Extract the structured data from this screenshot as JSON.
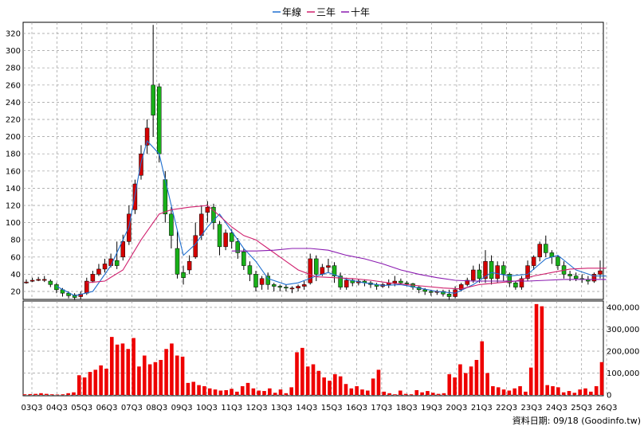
{
  "legend": [
    {
      "label": "年線",
      "color": "#1f6fd0"
    },
    {
      "label": "三年",
      "color": "#d0206e"
    },
    {
      "label": "十年",
      "color": "#8a1ab0"
    }
  ],
  "source_label": "資料日期: 09/18  (Goodinfo.tw)",
  "colors": {
    "up": "#d40000",
    "down": "#18b018",
    "volume": "#ee0000",
    "grid": "#999999"
  },
  "chart_data": [
    {
      "type": "candlestick",
      "title": "",
      "ylim": [
        10,
        330
      ],
      "yticks": [
        20,
        40,
        60,
        80,
        100,
        120,
        140,
        160,
        180,
        200,
        220,
        240,
        260,
        280,
        300,
        320
      ],
      "grid": true,
      "xtick_labels": [
        "03Q3",
        "04Q3",
        "05Q3",
        "06Q3",
        "07Q3",
        "08Q3",
        "09Q3",
        "10Q3",
        "11Q3",
        "12Q3",
        "13Q3",
        "14Q3",
        "15Q3",
        "16Q3",
        "17Q3",
        "18Q3",
        "19Q3",
        "20Q3",
        "21Q3",
        "22Q3",
        "23Q3",
        "24Q3",
        "25Q3",
        "26Q3"
      ],
      "candles": [
        [
          31,
          31,
          29,
          34
        ],
        [
          32,
          33,
          31,
          36
        ],
        [
          33,
          34,
          32,
          37
        ],
        [
          34,
          34,
          31,
          38
        ],
        [
          32,
          28,
          25,
          34
        ],
        [
          28,
          22,
          18,
          30
        ],
        [
          22,
          18,
          14,
          24
        ],
        [
          18,
          15,
          12,
          20
        ],
        [
          16,
          13,
          10,
          18
        ],
        [
          14,
          17,
          11,
          20
        ],
        [
          18,
          32,
          16,
          36
        ],
        [
          32,
          40,
          30,
          44
        ],
        [
          40,
          46,
          38,
          52
        ],
        [
          46,
          52,
          42,
          58
        ],
        [
          50,
          58,
          48,
          64
        ],
        [
          56,
          50,
          46,
          78
        ],
        [
          60,
          78,
          56,
          86
        ],
        [
          78,
          110,
          74,
          120
        ],
        [
          115,
          145,
          110,
          150
        ],
        [
          155,
          180,
          150,
          190
        ],
        [
          190,
          210,
          180,
          220
        ],
        [
          260,
          225,
          200,
          330
        ],
        [
          258,
          180,
          170,
          262
        ],
        [
          150,
          110,
          100,
          160
        ],
        [
          110,
          85,
          70,
          118
        ],
        [
          70,
          40,
          35,
          90
        ],
        [
          42,
          36,
          28,
          50
        ],
        [
          45,
          55,
          40,
          62
        ],
        [
          60,
          85,
          58,
          100
        ],
        [
          85,
          110,
          80,
          120
        ],
        [
          112,
          118,
          100,
          125
        ],
        [
          118,
          100,
          92,
          122
        ],
        [
          98,
          72,
          62,
          102
        ],
        [
          72,
          88,
          68,
          92
        ],
        [
          88,
          78,
          70,
          92
        ],
        [
          78,
          65,
          58,
          82
        ],
        [
          66,
          50,
          45,
          70
        ],
        [
          50,
          40,
          32,
          55
        ],
        [
          40,
          25,
          20,
          44
        ],
        [
          28,
          35,
          22,
          38
        ],
        [
          38,
          28,
          22,
          42
        ],
        [
          28,
          26,
          20,
          30
        ],
        [
          26,
          25,
          20,
          28
        ],
        [
          25,
          24,
          20,
          28
        ],
        [
          24,
          24,
          18,
          26
        ],
        [
          24,
          26,
          20,
          28
        ],
        [
          26,
          28,
          22,
          32
        ],
        [
          30,
          58,
          28,
          64
        ],
        [
          58,
          40,
          32,
          62
        ],
        [
          40,
          48,
          38,
          52
        ],
        [
          48,
          50,
          42,
          58
        ],
        [
          50,
          38,
          30,
          54
        ],
        [
          38,
          25,
          22,
          42
        ],
        [
          25,
          33,
          22,
          36
        ],
        [
          33,
          30,
          26,
          35
        ],
        [
          30,
          32,
          27,
          34
        ],
        [
          32,
          30,
          26,
          34
        ],
        [
          30,
          28,
          24,
          32
        ],
        [
          28,
          26,
          22,
          30
        ],
        [
          26,
          28,
          24,
          30
        ],
        [
          28,
          30,
          24,
          34
        ],
        [
          30,
          32,
          26,
          38
        ],
        [
          32,
          30,
          28,
          35
        ],
        [
          30,
          29,
          26,
          32
        ],
        [
          29,
          25,
          22,
          30
        ],
        [
          25,
          22,
          18,
          26
        ],
        [
          22,
          20,
          16,
          24
        ],
        [
          20,
          19,
          15,
          22
        ],
        [
          19,
          20,
          16,
          22
        ],
        [
          20,
          17,
          14,
          22
        ],
        [
          17,
          14,
          10,
          22
        ],
        [
          14,
          22,
          12,
          26
        ],
        [
          22,
          28,
          20,
          30
        ],
        [
          28,
          33,
          26,
          36
        ],
        [
          33,
          45,
          30,
          50
        ],
        [
          45,
          35,
          30,
          52
        ],
        [
          35,
          55,
          30,
          68
        ],
        [
          55,
          35,
          28,
          62
        ],
        [
          35,
          50,
          30,
          55
        ],
        [
          50,
          40,
          32,
          55
        ],
        [
          40,
          30,
          25,
          42
        ],
        [
          30,
          25,
          22,
          32
        ],
        [
          25,
          35,
          22,
          38
        ],
        [
          35,
          50,
          32,
          56
        ],
        [
          50,
          60,
          45,
          62
        ],
        [
          60,
          75,
          55,
          78
        ],
        [
          75,
          65,
          60,
          85
        ],
        [
          65,
          60,
          52,
          68
        ],
        [
          60,
          50,
          45,
          62
        ],
        [
          50,
          40,
          35,
          55
        ],
        [
          40,
          38,
          32,
          44
        ],
        [
          38,
          35,
          32,
          42
        ],
        [
          35,
          34,
          30,
          40
        ],
        [
          34,
          32,
          28,
          38
        ],
        [
          32,
          40,
          30,
          42
        ],
        [
          40,
          44,
          35,
          56
        ]
      ]
    },
    {
      "type": "line",
      "series": [
        {
          "name": "年線",
          "color": "#1f6fd0",
          "points": [
            [
              5,
              26
            ],
            [
              8,
              15
            ],
            [
              11,
              20
            ],
            [
              14,
              50
            ],
            [
              17,
              95
            ],
            [
              19,
              170
            ],
            [
              20,
              195
            ],
            [
              22,
              180
            ],
            [
              24,
              120
            ],
            [
              26,
              62
            ],
            [
              28,
              75
            ],
            [
              30,
              95
            ],
            [
              32,
              110
            ],
            [
              34,
              90
            ],
            [
              36,
              70
            ],
            [
              38,
              55
            ],
            [
              40,
              35
            ],
            [
              43,
              28
            ],
            [
              45,
              30
            ],
            [
              48,
              38
            ],
            [
              50,
              42
            ],
            [
              53,
              34
            ],
            [
              56,
              30
            ],
            [
              59,
              27
            ],
            [
              62,
              28
            ],
            [
              65,
              24
            ],
            [
              68,
              20
            ],
            [
              71,
              18
            ],
            [
              74,
              28
            ],
            [
              77,
              42
            ],
            [
              80,
              38
            ],
            [
              83,
              40
            ],
            [
              86,
              58
            ],
            [
              88,
              62
            ],
            [
              91,
              45
            ],
            [
              94,
              38
            ],
            [
              96,
              38
            ]
          ]
        },
        {
          "name": "三年",
          "color": "#d0206e",
          "points": [
            [
              10,
              30
            ],
            [
              13,
              32
            ],
            [
              16,
              45
            ],
            [
              19,
              80
            ],
            [
              22,
              110
            ],
            [
              24,
              115
            ],
            [
              27,
              118
            ],
            [
              30,
              120
            ],
            [
              32,
              108
            ],
            [
              34,
              95
            ],
            [
              36,
              85
            ],
            [
              38,
              80
            ],
            [
              40,
              70
            ],
            [
              43,
              55
            ],
            [
              45,
              45
            ],
            [
              48,
              37
            ],
            [
              51,
              36
            ],
            [
              54,
              35
            ],
            [
              57,
              33
            ],
            [
              60,
              30
            ],
            [
              63,
              28
            ],
            [
              66,
              26
            ],
            [
              69,
              24
            ],
            [
              72,
              23
            ],
            [
              75,
              28
            ],
            [
              78,
              30
            ],
            [
              81,
              32
            ],
            [
              84,
              38
            ],
            [
              87,
              42
            ],
            [
              90,
              46
            ],
            [
              93,
              47
            ],
            [
              96,
              47
            ]
          ]
        },
        {
          "name": "十年",
          "color": "#8a1ab0",
          "points": [
            [
              34,
              67
            ],
            [
              38,
              67
            ],
            [
              41,
              68
            ],
            [
              44,
              70
            ],
            [
              47,
              70
            ],
            [
              50,
              68
            ],
            [
              53,
              62
            ],
            [
              56,
              58
            ],
            [
              59,
              52
            ],
            [
              62,
              45
            ],
            [
              65,
              40
            ],
            [
              68,
              36
            ],
            [
              71,
              33
            ],
            [
              74,
              32
            ],
            [
              77,
              32
            ],
            [
              80,
              32
            ],
            [
              83,
              32
            ],
            [
              86,
              33
            ],
            [
              89,
              34
            ],
            [
              92,
              34
            ],
            [
              96,
              34
            ]
          ]
        }
      ]
    },
    {
      "type": "bar",
      "ylim": [
        0,
        430000
      ],
      "yticks": [
        0,
        100000,
        200000,
        300000,
        400000
      ],
      "ytick_labels": [
        "0",
        "100,000",
        "200,000",
        "300,000",
        "400,000"
      ],
      "values": [
        3000,
        4000,
        5000,
        8000,
        5000,
        3000,
        2000,
        3000,
        8000,
        12000,
        90000,
        80000,
        105000,
        115000,
        135000,
        120000,
        265000,
        230000,
        235000,
        210000,
        260000,
        130000,
        180000,
        140000,
        150000,
        160000,
        210000,
        235000,
        180000,
        175000,
        55000,
        60000,
        45000,
        40000,
        30000,
        25000,
        20000,
        22000,
        28000,
        15000,
        40000,
        55000,
        30000,
        20000,
        18000,
        30000,
        10000,
        25000,
        8000,
        35000,
        195000,
        215000,
        130000,
        140000,
        110000,
        80000,
        65000,
        95000,
        85000,
        50000,
        30000,
        40000,
        25000,
        20000,
        75000,
        115000,
        15000,
        8000,
        3000,
        20000,
        5000,
        3000,
        22000,
        12000,
        18000,
        10000,
        5000,
        8000,
        95000,
        80000,
        140000,
        100000,
        130000,
        160000,
        245000,
        100000,
        40000,
        35000,
        25000,
        20000,
        30000,
        40000,
        15000,
        125000,
        415000,
        405000,
        45000,
        40000,
        35000,
        12000,
        18000,
        10000,
        25000,
        30000,
        15000,
        40000,
        150000
      ]
    }
  ]
}
